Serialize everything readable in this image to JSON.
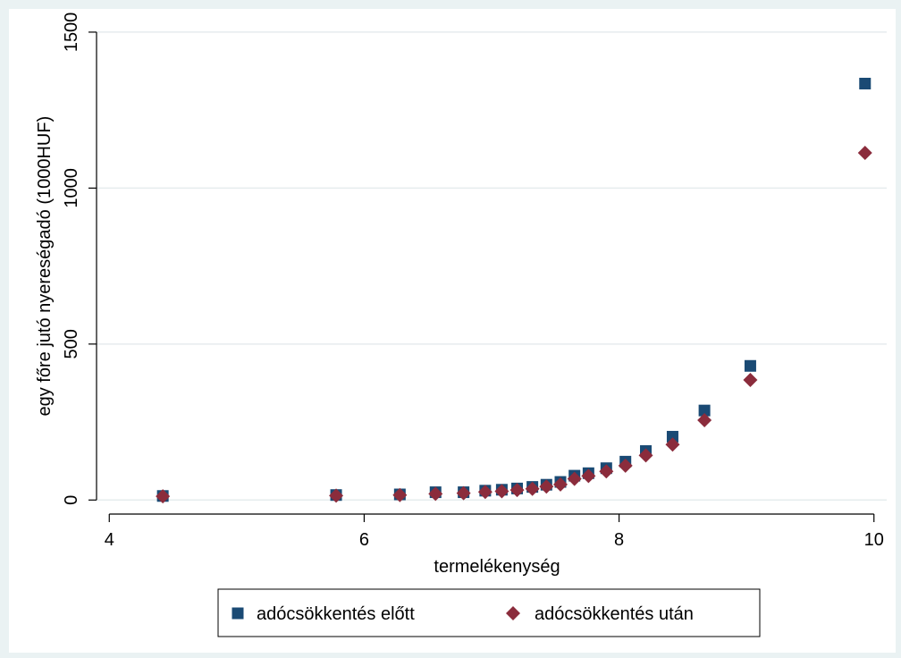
{
  "chart_data": {
    "type": "scatter",
    "title": "",
    "xlabel": "termelékenység",
    "ylabel": "egy főre jutó nyereségadó (1000HUF)",
    "xlim": [
      3.9,
      10.1
    ],
    "ylim": [
      -45,
      1560
    ],
    "xticks": [
      4,
      6,
      8,
      10
    ],
    "yticks": [
      0,
      500,
      1000,
      1500
    ],
    "grid": true,
    "legend_position": "bottom",
    "series": [
      {
        "name": "adócsökkentés előtt",
        "marker": "square",
        "color": "#1a4a74",
        "points": [
          {
            "x": 4.42,
            "y": 13
          },
          {
            "x": 5.78,
            "y": 16
          },
          {
            "x": 6.28,
            "y": 18
          },
          {
            "x": 6.56,
            "y": 25
          },
          {
            "x": 6.78,
            "y": 25
          },
          {
            "x": 6.95,
            "y": 30
          },
          {
            "x": 7.08,
            "y": 33
          },
          {
            "x": 7.2,
            "y": 37
          },
          {
            "x": 7.32,
            "y": 42
          },
          {
            "x": 7.43,
            "y": 49
          },
          {
            "x": 7.54,
            "y": 58
          },
          {
            "x": 7.65,
            "y": 78
          },
          {
            "x": 7.76,
            "y": 86
          },
          {
            "x": 7.9,
            "y": 102
          },
          {
            "x": 8.05,
            "y": 123
          },
          {
            "x": 8.21,
            "y": 157
          },
          {
            "x": 8.42,
            "y": 203
          },
          {
            "x": 8.67,
            "y": 287
          },
          {
            "x": 9.03,
            "y": 430
          },
          {
            "x": 9.93,
            "y": 1335
          }
        ]
      },
      {
        "name": "adócsökkentés után",
        "marker": "diamond",
        "color": "#8b2c3c",
        "points": [
          {
            "x": 4.42,
            "y": 12
          },
          {
            "x": 5.78,
            "y": 14
          },
          {
            "x": 6.28,
            "y": 16
          },
          {
            "x": 6.56,
            "y": 20
          },
          {
            "x": 6.78,
            "y": 22
          },
          {
            "x": 6.95,
            "y": 26
          },
          {
            "x": 7.08,
            "y": 28
          },
          {
            "x": 7.2,
            "y": 32
          },
          {
            "x": 7.32,
            "y": 36
          },
          {
            "x": 7.43,
            "y": 43
          },
          {
            "x": 7.54,
            "y": 50
          },
          {
            "x": 7.65,
            "y": 68
          },
          {
            "x": 7.76,
            "y": 77
          },
          {
            "x": 7.9,
            "y": 92
          },
          {
            "x": 8.05,
            "y": 110
          },
          {
            "x": 8.21,
            "y": 143
          },
          {
            "x": 8.42,
            "y": 178
          },
          {
            "x": 8.67,
            "y": 256
          },
          {
            "x": 9.03,
            "y": 385
          },
          {
            "x": 9.93,
            "y": 1113
          }
        ]
      }
    ]
  },
  "colors": {
    "frame_background": "#eaf2f3",
    "plot_background": "#ffffff",
    "grid": "#e6ecee",
    "axis": "#000000"
  }
}
